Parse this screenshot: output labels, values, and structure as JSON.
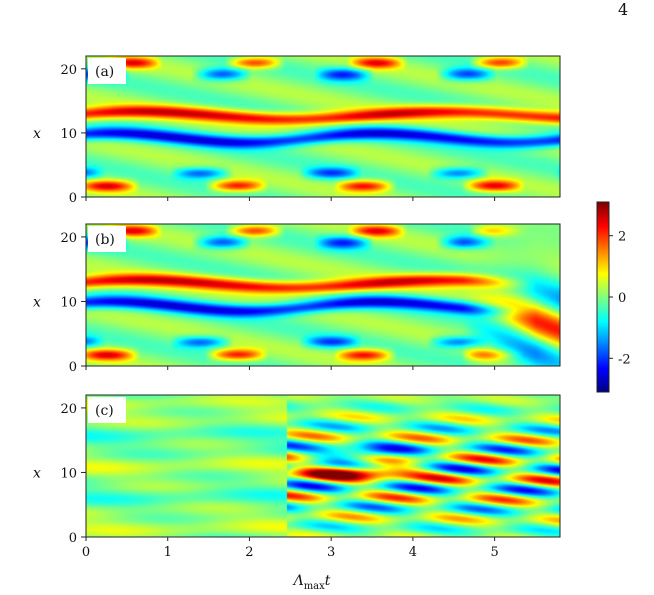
{
  "page": {
    "number": "4"
  },
  "chart_data": {
    "type": "heatmap",
    "panels": [
      {
        "label": "(a)",
        "ylabel": "x",
        "yticks": [
          0,
          10,
          20
        ],
        "ylim": [
          0,
          22
        ],
        "pattern": "a"
      },
      {
        "label": "(b)",
        "ylabel": "x",
        "yticks": [
          0,
          10,
          20
        ],
        "ylim": [
          0,
          22
        ],
        "pattern": "b"
      },
      {
        "label": "(c)",
        "ylabel": "x",
        "yticks": [
          0,
          10,
          20
        ],
        "ylim": [
          0,
          22
        ],
        "pattern": "c"
      }
    ],
    "xlabel_main": "Λ",
    "xlabel_sub": "max",
    "xlabel_tail": "t",
    "xlim": [
      0,
      5.8
    ],
    "xticks": [
      0,
      1,
      2,
      3,
      4,
      5
    ],
    "colorbar": {
      "range": [
        -3.1,
        3.1
      ],
      "ticks": [
        2,
        0,
        -2
      ],
      "tick_labels": [
        "2",
        "0",
        "-2"
      ],
      "colormap": "jet"
    }
  }
}
